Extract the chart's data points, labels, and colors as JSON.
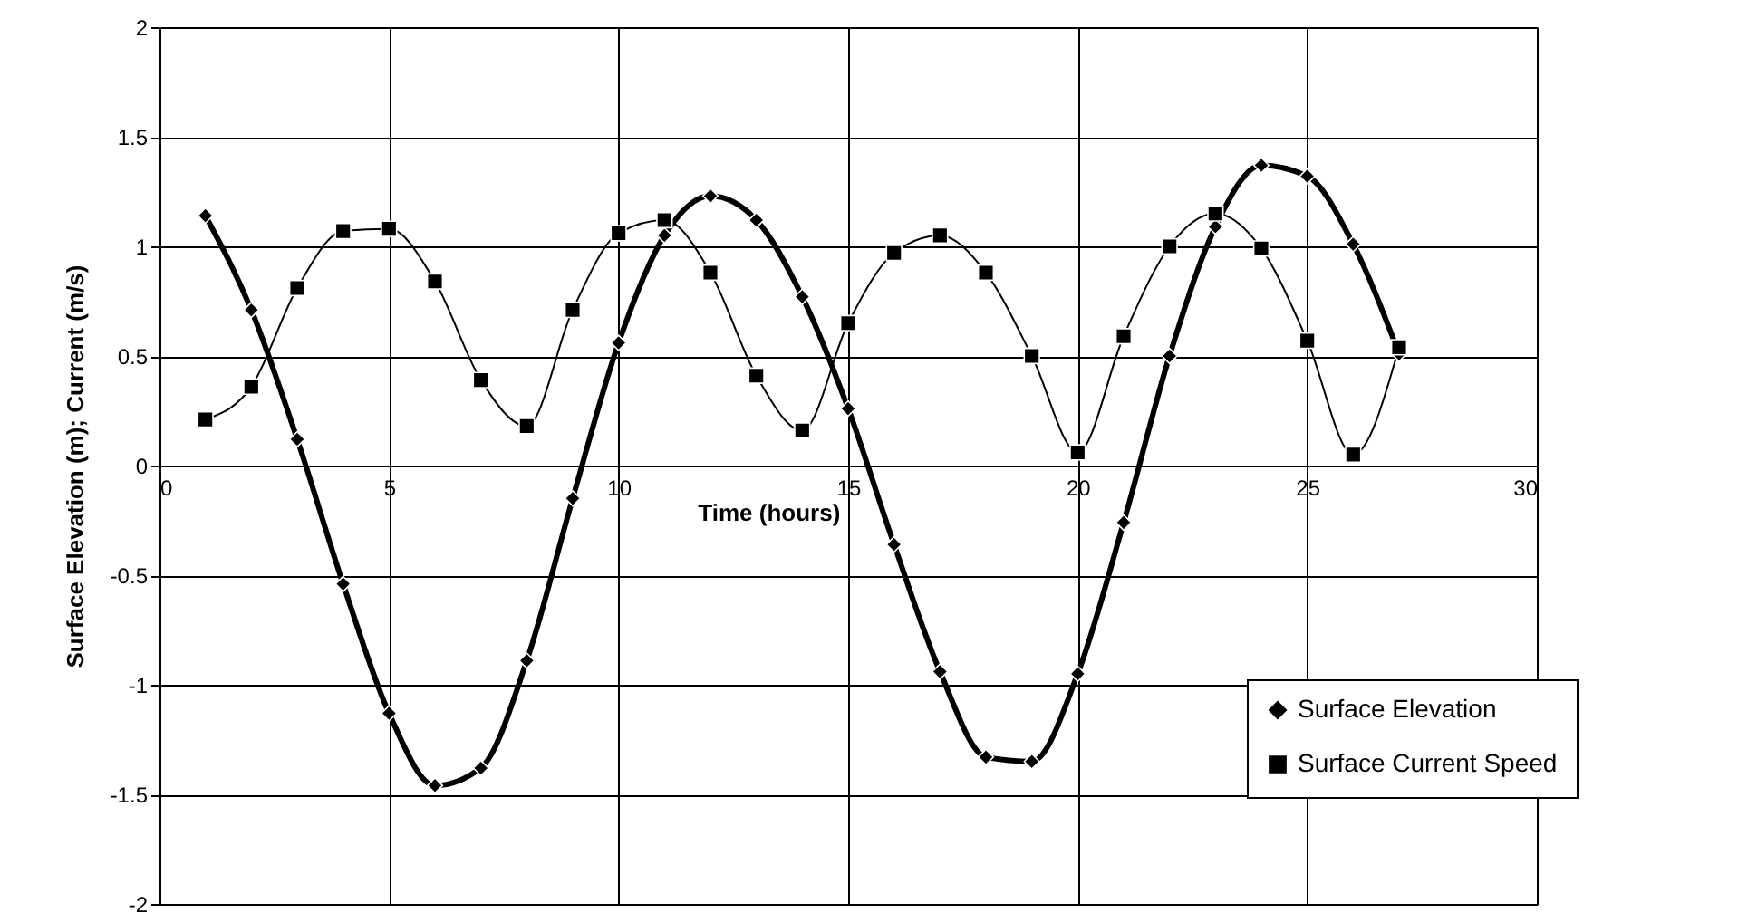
{
  "chart_data": {
    "type": "line",
    "xlabel": "Time (hours)",
    "ylabel": "Surface Elevation (m); Current (m/s)",
    "x": [
      1,
      2,
      3,
      4,
      5,
      6,
      7,
      8,
      9,
      10,
      11,
      12,
      13,
      14,
      15,
      16,
      17,
      18,
      19,
      20,
      21,
      22,
      23,
      24,
      25,
      26,
      27
    ],
    "series": [
      {
        "name": "Surface Elevation",
        "color": "#000000",
        "marker": "diamond",
        "values": [
          1.14,
          0.71,
          0.12,
          -0.54,
          -1.13,
          -1.46,
          -1.38,
          -0.89,
          -0.15,
          0.56,
          1.05,
          1.23,
          1.12,
          0.77,
          0.26,
          -0.36,
          -0.94,
          -1.33,
          -1.35,
          -0.95,
          -0.26,
          0.5,
          1.09,
          1.37,
          1.32,
          1.01,
          0.51
        ]
      },
      {
        "name": "Surface Current Speed",
        "color": "#000000",
        "marker": "square",
        "values": [
          0.21,
          0.36,
          0.81,
          1.07,
          1.08,
          0.84,
          0.39,
          0.18,
          0.71,
          1.06,
          1.12,
          0.88,
          0.41,
          0.16,
          0.65,
          0.97,
          1.05,
          0.88,
          0.5,
          0.06,
          0.59,
          1.0,
          1.15,
          0.99,
          0.57,
          0.05,
          0.54
        ]
      }
    ],
    "xlim": [
      0,
      30
    ],
    "xticks": [
      0,
      5,
      10,
      15,
      20,
      25,
      30
    ],
    "ylim": [
      -2,
      2
    ],
    "yticks": [
      -2,
      -1.5,
      -1,
      -0.5,
      0,
      0.5,
      1,
      1.5,
      2
    ],
    "grid": true,
    "legend": "bottom right",
    "line_style": "solid"
  }
}
